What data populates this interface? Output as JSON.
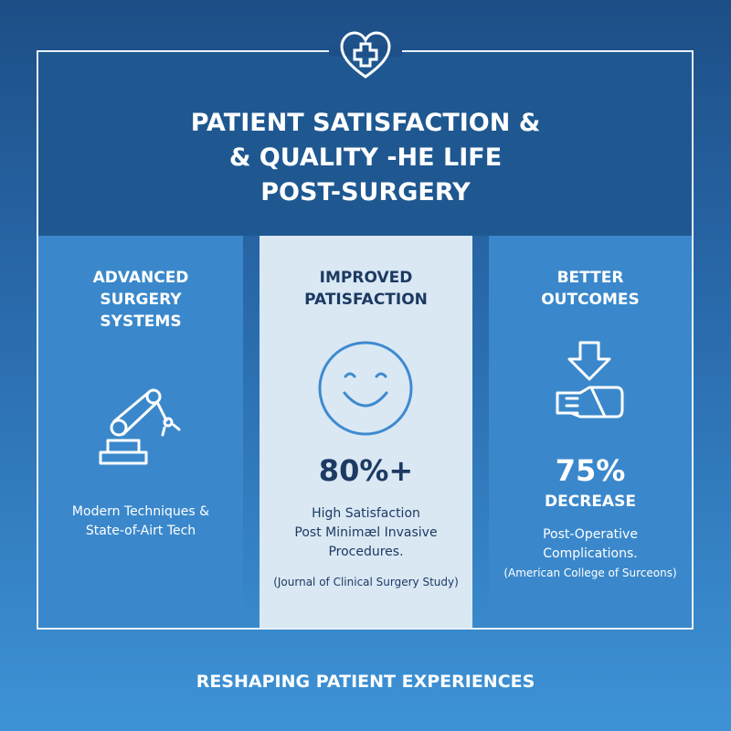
{
  "header": {
    "title_lines": [
      "PATIENT SATISFACTION &",
      "& QUALITY -HE LIFE",
      "POST-SURGERY"
    ]
  },
  "columns": [
    {
      "heading_lines": [
        "ADVANCED",
        "SURGERY",
        "SYSTEMS"
      ],
      "body_lines": [
        "Modern Techniques &",
        "State-of-Airt Tech"
      ]
    },
    {
      "heading_lines": [
        "IMPROVED",
        "PATISFACTION"
      ],
      "stat": "80%+",
      "body_lines": [
        "High Satisfaction",
        "Post Minimæl Invasive",
        "Procedures."
      ],
      "source": "(Journal of Clinical Surgery Study)"
    },
    {
      "heading_lines": [
        "BETTER",
        "OUTCOMES"
      ],
      "stat": "75%",
      "stat_label": "DECREASE",
      "body_lines": [
        "Post-Operative",
        "Complications."
      ],
      "source": "(American College of Surceons)"
    }
  ],
  "footer": {
    "tagline": "RESHAPING PATIENT EXPERIENCES"
  }
}
